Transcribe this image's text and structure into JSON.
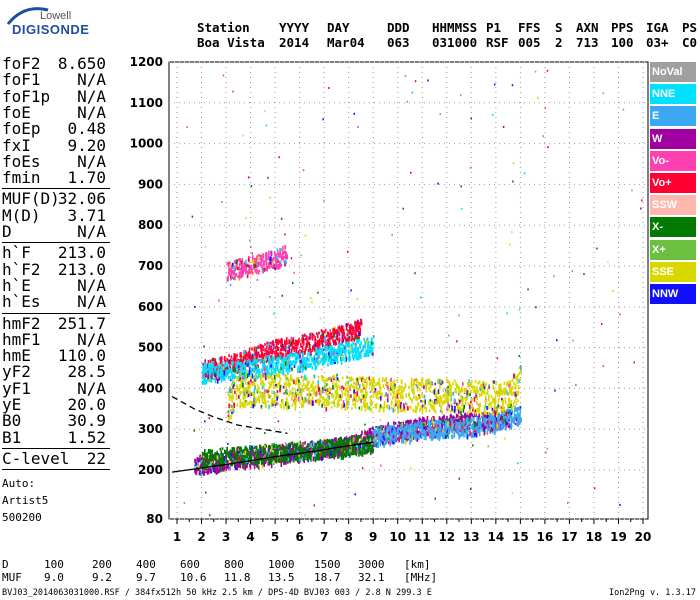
{
  "logo": {
    "top": "Lowell",
    "main": "DIGISONDE"
  },
  "header": {
    "line1": [
      "Station",
      "YYYY",
      "DAY",
      "DDD",
      "HHMMSS",
      "P1",
      "FFS",
      "S",
      "AXN",
      "PPS",
      "IGA",
      "PS"
    ],
    "line2": [
      "Boa Vista",
      "2014",
      "Mar04",
      "063",
      "031000",
      "RSF",
      "005",
      "2",
      "713",
      "100",
      "03+",
      "C0"
    ]
  },
  "params": {
    "group1": [
      {
        "k": "foF2",
        "v": "8.650"
      },
      {
        "k": "foF1",
        "v": "N/A"
      },
      {
        "k": "foF1p",
        "v": "N/A"
      },
      {
        "k": "foE",
        "v": "N/A"
      },
      {
        "k": "foEp",
        "v": "0.48"
      },
      {
        "k": "fxI",
        "v": "9.20"
      },
      {
        "k": "foEs",
        "v": "N/A"
      },
      {
        "k": "fmin",
        "v": "1.70"
      }
    ],
    "group2": [
      {
        "k": "MUF(D)",
        "v": "32.06"
      },
      {
        "k": "M(D)",
        "v": "3.71"
      },
      {
        "k": "D",
        "v": "N/A"
      }
    ],
    "group3": [
      {
        "k": "h`F",
        "v": "213.0"
      },
      {
        "k": "h`F2",
        "v": "213.0"
      },
      {
        "k": "h`E",
        "v": "N/A"
      },
      {
        "k": "h`Es",
        "v": "N/A"
      }
    ],
    "group4": [
      {
        "k": "hmF2",
        "v": "251.7"
      },
      {
        "k": "hmF1",
        "v": "N/A"
      },
      {
        "k": "hmE",
        "v": "110.0"
      },
      {
        "k": "yF2",
        "v": "28.5"
      },
      {
        "k": "yF1",
        "v": "N/A"
      },
      {
        "k": "yE",
        "v": "20.0"
      },
      {
        "k": "B0",
        "v": "30.9"
      },
      {
        "k": "B1",
        "v": "1.52"
      }
    ],
    "group5": [
      {
        "k": "C-level",
        "v": "22"
      }
    ]
  },
  "auto": [
    "Auto:",
    "Artist5",
    "500200"
  ],
  "legend": [
    {
      "label": "NoVal",
      "color": "#a0a0a0"
    },
    {
      "label": "NNE",
      "color": "#00e0ff"
    },
    {
      "label": "E",
      "color": "#3aa8f0"
    },
    {
      "label": "W",
      "color": "#a000a0"
    },
    {
      "label": "Vo-",
      "color": "#ff40b0"
    },
    {
      "label": "Vo+",
      "color": "#ff0030"
    },
    {
      "label": "SSW",
      "color": "#ffb8b0"
    },
    {
      "label": "X-",
      "color": "#007a00"
    },
    {
      "label": "X+",
      "color": "#6cc040"
    },
    {
      "label": "SSE",
      "color": "#d8d800"
    },
    {
      "label": "NNW",
      "color": "#1010ff"
    }
  ],
  "muf_table": {
    "d_label": "D",
    "d_values": [
      "100",
      "200",
      "400",
      "600",
      "800",
      "1000",
      "1500",
      "3000"
    ],
    "d_unit": "[km]",
    "muf_label": "MUF",
    "muf_values": [
      "9.0",
      "9.2",
      "9.7",
      "10.6",
      "11.8",
      "13.5",
      "18.7",
      "32.1"
    ],
    "muf_unit": "[MHz]"
  },
  "footer": "BVJ03_2014063031000.RSF / 384fx512h 50 kHz 2.5 km / DPS-4D BVJ03 003 / 2.8 N 299.3 E",
  "version": "Ion2Png v. 1.3.17",
  "chart_data": {
    "type": "scatter",
    "xlim": [
      0.75,
      20.1
    ],
    "ylim": [
      80,
      1200
    ],
    "xticks": [
      1,
      2,
      3,
      4,
      5,
      6,
      7,
      8,
      9,
      10,
      11,
      12,
      13,
      14,
      15,
      16,
      17,
      18,
      19,
      20
    ],
    "yticks": [
      80,
      200,
      300,
      400,
      500,
      600,
      700,
      800,
      900,
      1000,
      1100,
      1200
    ],
    "grid": true,
    "legend_position": "right",
    "traces": [
      {
        "name": "W",
        "x": [
          1.7,
          3,
          5,
          7,
          8.2,
          9,
          10,
          11,
          12,
          13,
          14,
          14.5
        ],
        "y": [
          215,
          225,
          240,
          255,
          265,
          290,
          300,
          310,
          315,
          320,
          325,
          330
        ]
      },
      {
        "name": "Vo+",
        "x": [
          2,
          3,
          4,
          5,
          6,
          7,
          8,
          8.5
        ],
        "y": [
          450,
          460,
          480,
          500,
          510,
          525,
          540,
          550
        ]
      },
      {
        "name": "Vo-",
        "x": [
          3,
          4,
          5,
          5.5
        ],
        "y": [
          690,
          705,
          720,
          735
        ]
      },
      {
        "name": "NNE",
        "x": [
          2,
          4,
          6,
          8,
          9
        ],
        "y": [
          440,
          450,
          470,
          495,
          510
        ]
      },
      {
        "name": "E",
        "x": [
          9,
          11,
          13,
          14,
          15
        ],
        "y": [
          285,
          300,
          310,
          320,
          340
        ]
      },
      {
        "name": "SSE",
        "x": [
          3,
          3.5,
          14.5,
          15
        ],
        "y": [
          360,
          400,
          380,
          420
        ]
      },
      {
        "name": "X-",
        "x": [
          2,
          4,
          6,
          8,
          9
        ],
        "y": [
          230,
          240,
          250,
          260,
          270
        ]
      }
    ],
    "profile": {
      "x": [
        0.8,
        2,
        3.5,
        5,
        6.5,
        7.5,
        8.3,
        9
      ],
      "y": [
        195,
        205,
        218,
        233,
        245,
        255,
        262,
        268
      ]
    },
    "dashed_profile": {
      "x": [
        0.8,
        1.7,
        2.5,
        3.5,
        4.5,
        5.5
      ],
      "y": [
        380,
        350,
        330,
        310,
        300,
        290
      ]
    }
  }
}
